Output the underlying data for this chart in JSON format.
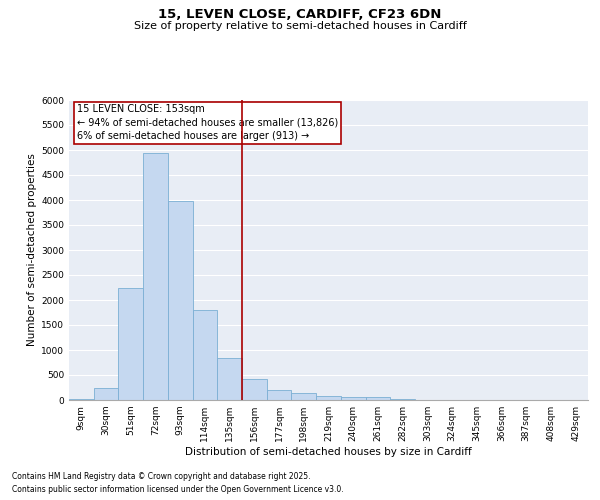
{
  "title1": "15, LEVEN CLOSE, CARDIFF, CF23 6DN",
  "title2": "Size of property relative to semi-detached houses in Cardiff",
  "xlabel": "Distribution of semi-detached houses by size in Cardiff",
  "ylabel": "Number of semi-detached properties",
  "categories": [
    "9sqm",
    "30sqm",
    "51sqm",
    "72sqm",
    "93sqm",
    "114sqm",
    "135sqm",
    "156sqm",
    "177sqm",
    "198sqm",
    "219sqm",
    "240sqm",
    "261sqm",
    "282sqm",
    "303sqm",
    "324sqm",
    "345sqm",
    "366sqm",
    "387sqm",
    "408sqm",
    "429sqm"
  ],
  "values": [
    20,
    250,
    2250,
    4950,
    3980,
    1800,
    840,
    420,
    200,
    150,
    90,
    70,
    55,
    30,
    5,
    0,
    0,
    0,
    0,
    0,
    0
  ],
  "bar_color": "#c5d8f0",
  "bar_edgecolor": "#7bafd4",
  "vline_color": "#aa0000",
  "annotation_title": "15 LEVEN CLOSE: 153sqm",
  "annotation_line1": "← 94% of semi-detached houses are smaller (13,826)",
  "annotation_line2": "6% of semi-detached houses are larger (913) →",
  "annotation_box_color": "#aa0000",
  "ylim": [
    0,
    6000
  ],
  "yticks": [
    0,
    500,
    1000,
    1500,
    2000,
    2500,
    3000,
    3500,
    4000,
    4500,
    5000,
    5500,
    6000
  ],
  "background_color": "#e8edf5",
  "footer1": "Contains HM Land Registry data © Crown copyright and database right 2025.",
  "footer2": "Contains public sector information licensed under the Open Government Licence v3.0.",
  "title_fontsize": 9.5,
  "subtitle_fontsize": 8,
  "axis_label_fontsize": 7.5,
  "tick_fontsize": 6.5,
  "annot_fontsize": 7,
  "footer_fontsize": 5.5
}
